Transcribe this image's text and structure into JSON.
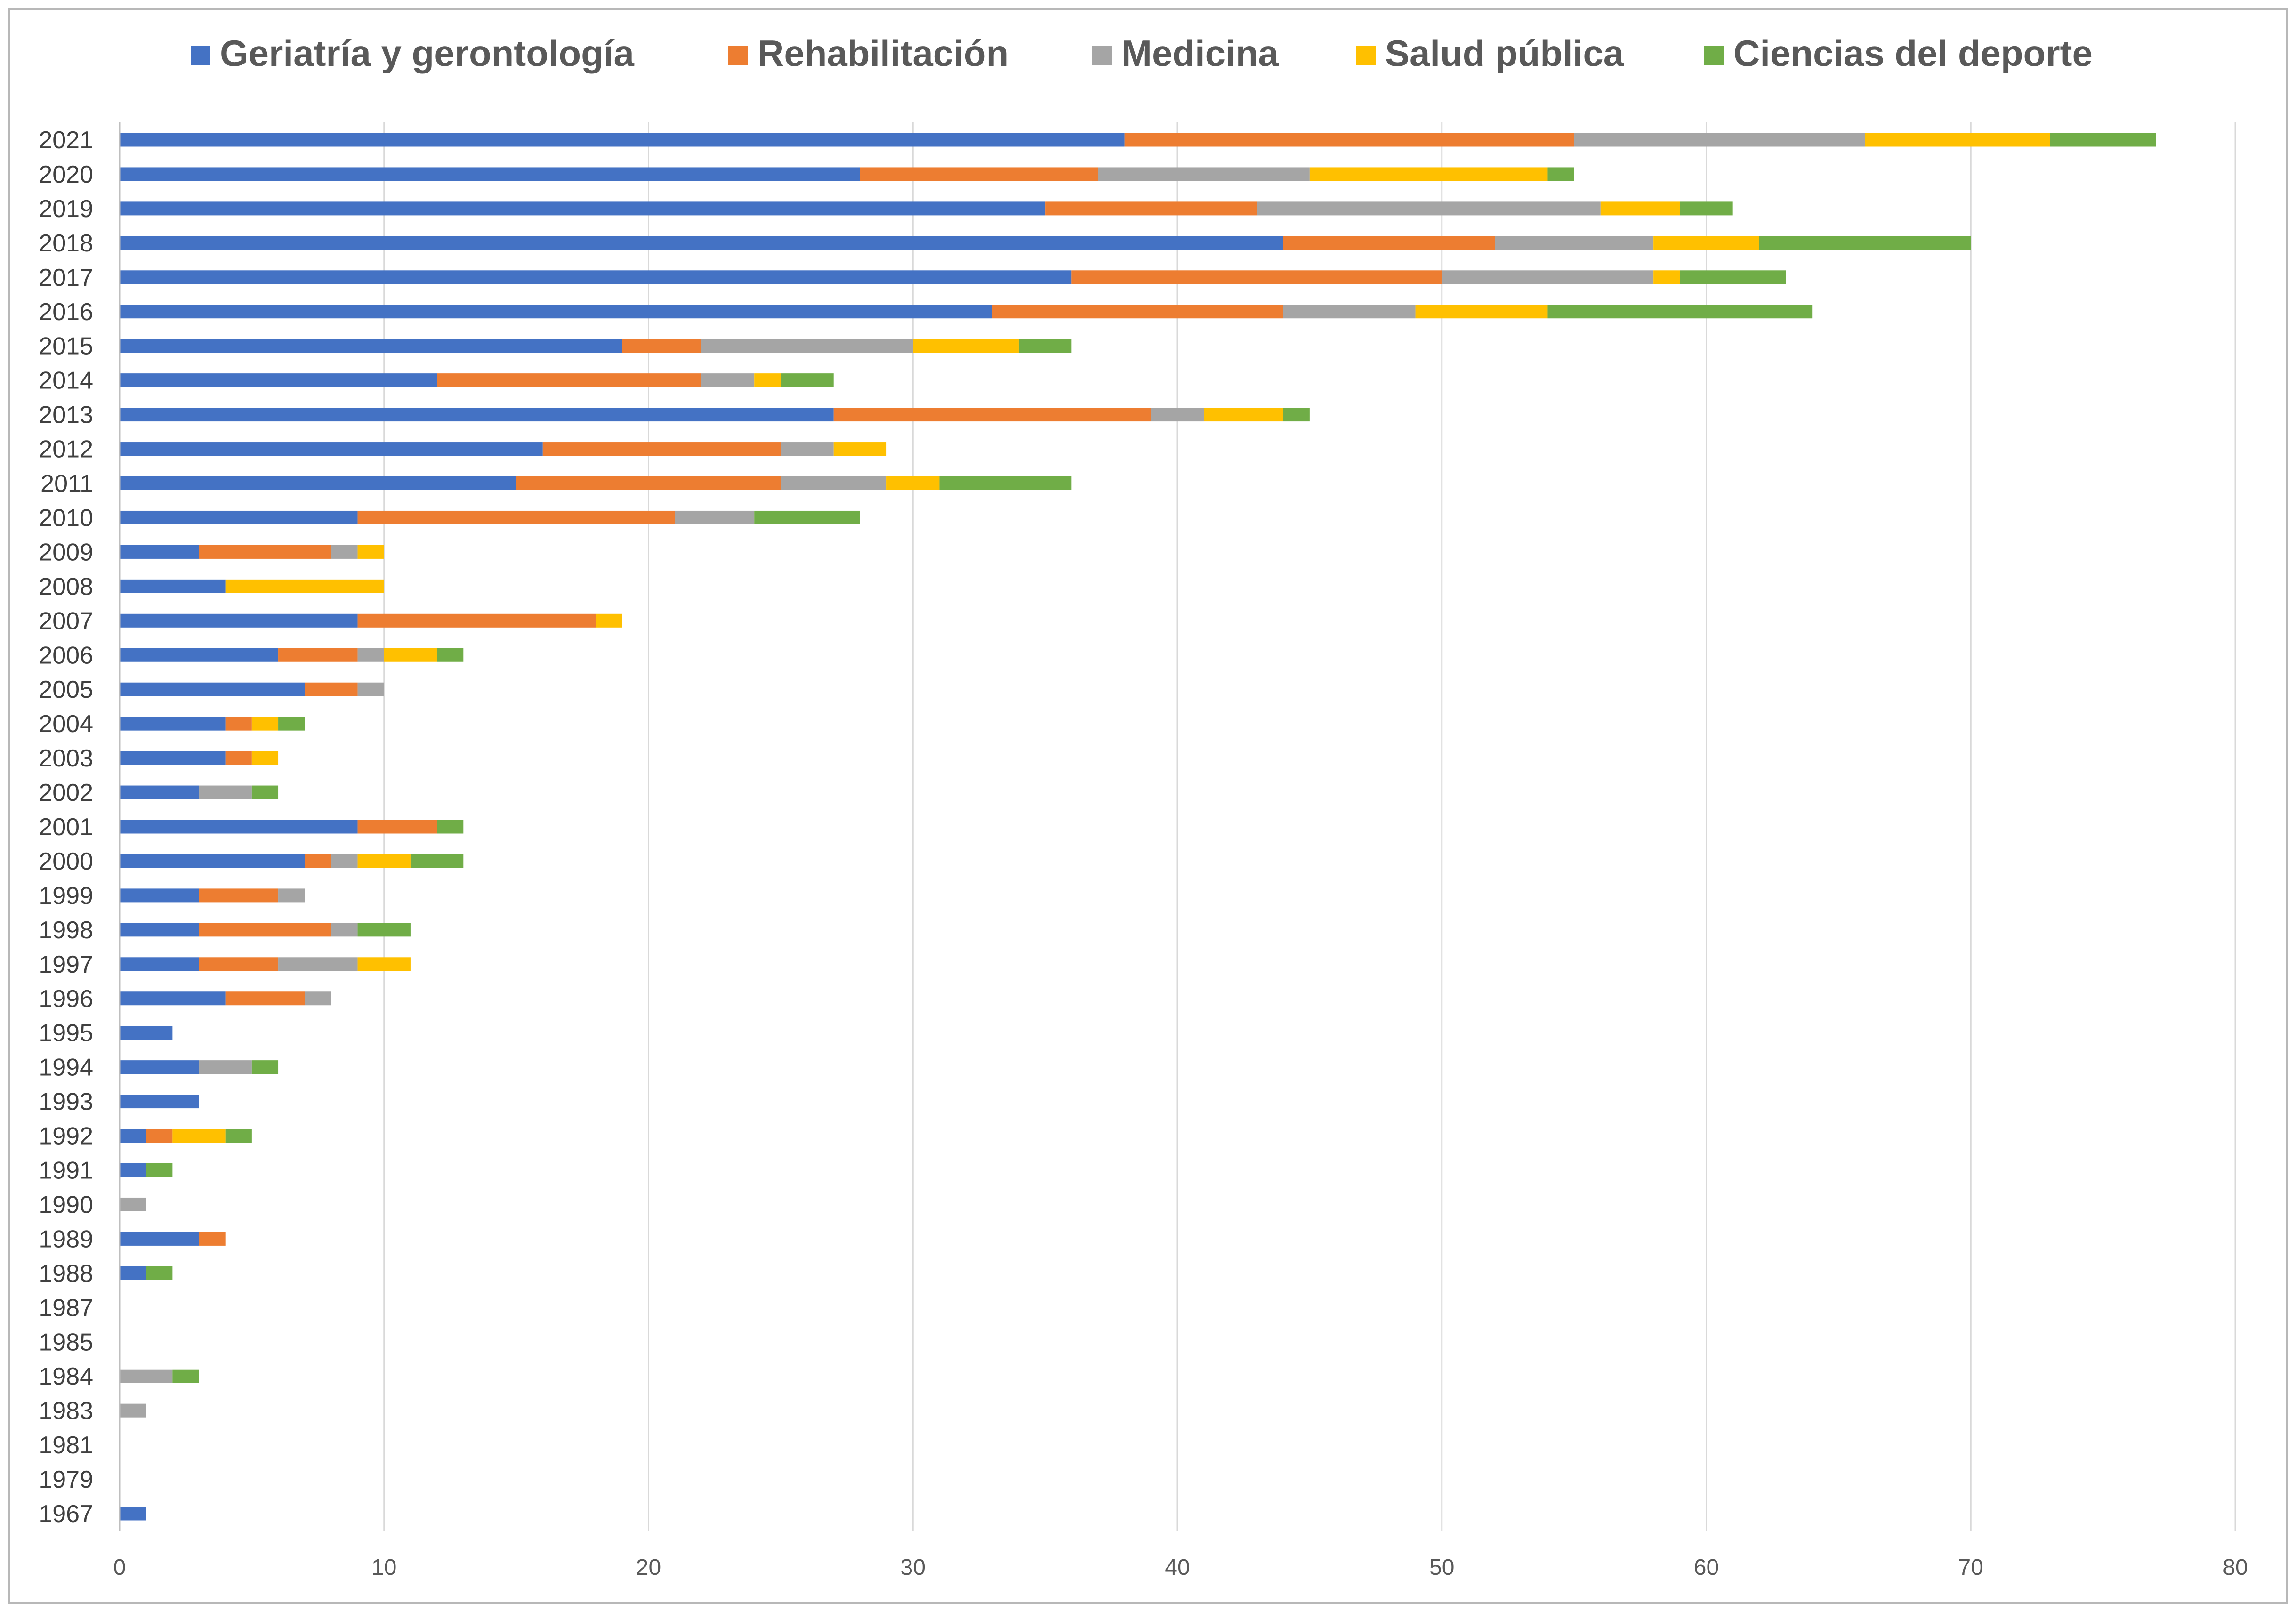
{
  "chart_data": {
    "type": "bar",
    "orientation": "horizontal",
    "stacked": true,
    "title": "",
    "xlabel": "",
    "ylabel": "",
    "xlim": [
      0,
      80
    ],
    "x_ticks": [
      0,
      10,
      20,
      30,
      40,
      50,
      60,
      70,
      80
    ],
    "grid": "vertical",
    "legend_position": "top",
    "categories": [
      "2021",
      "2020",
      "2019",
      "2018",
      "2017",
      "2016",
      "2015",
      "2014",
      "2013",
      "2012",
      "2011",
      "2010",
      "2009",
      "2008",
      "2007",
      "2006",
      "2005",
      "2004",
      "2003",
      "2002",
      "2001",
      "2000",
      "1999",
      "1998",
      "1997",
      "1996",
      "1995",
      "1994",
      "1993",
      "1992",
      "1991",
      "1990",
      "1989",
      "1988",
      "1987",
      "1985",
      "1984",
      "1983",
      "1981",
      "1979",
      "1967"
    ],
    "series": [
      {
        "name": "Geriatría y gerontología",
        "color": "#4472c4",
        "values": [
          38,
          28,
          35,
          44,
          36,
          33,
          19,
          12,
          27,
          16,
          15,
          9,
          3,
          4,
          9,
          6,
          7,
          4,
          4,
          3,
          9,
          7,
          3,
          3,
          3,
          4,
          2,
          3,
          3,
          1,
          1,
          0,
          3,
          1,
          0,
          0,
          0,
          0,
          0,
          0,
          1
        ]
      },
      {
        "name": "Rehabilitación",
        "color": "#ed7d31",
        "values": [
          17,
          9,
          8,
          8,
          14,
          11,
          3,
          10,
          12,
          9,
          10,
          12,
          5,
          0,
          9,
          3,
          2,
          1,
          1,
          0,
          3,
          1,
          3,
          5,
          3,
          3,
          0,
          0,
          0,
          1,
          0,
          0,
          1,
          0,
          0,
          0,
          0,
          0,
          0,
          0,
          0
        ]
      },
      {
        "name": "Medicina",
        "color": "#a5a5a5",
        "values": [
          11,
          8,
          13,
          6,
          8,
          5,
          8,
          2,
          2,
          2,
          4,
          3,
          1,
          0,
          0,
          1,
          1,
          0,
          0,
          2,
          0,
          1,
          1,
          1,
          3,
          1,
          0,
          2,
          0,
          0,
          0,
          1,
          0,
          0,
          0,
          0,
          2,
          1,
          0,
          0,
          0
        ]
      },
      {
        "name": "Salud pública",
        "color": "#ffc000",
        "values": [
          7,
          9,
          3,
          4,
          1,
          5,
          4,
          1,
          3,
          2,
          2,
          0,
          1,
          6,
          1,
          2,
          0,
          1,
          1,
          0,
          0,
          2,
          0,
          0,
          2,
          0,
          0,
          0,
          0,
          2,
          0,
          0,
          0,
          0,
          0,
          0,
          0,
          0,
          0,
          0,
          0
        ]
      },
      {
        "name": "Ciencias del deporte",
        "color": "#70ad47",
        "values": [
          4,
          1,
          2,
          8,
          4,
          10,
          2,
          2,
          1,
          0,
          5,
          4,
          0,
          0,
          0,
          1,
          0,
          1,
          0,
          1,
          1,
          2,
          0,
          2,
          0,
          0,
          0,
          1,
          0,
          1,
          1,
          0,
          0,
          1,
          0,
          0,
          1,
          0,
          0,
          0,
          0
        ]
      }
    ]
  }
}
